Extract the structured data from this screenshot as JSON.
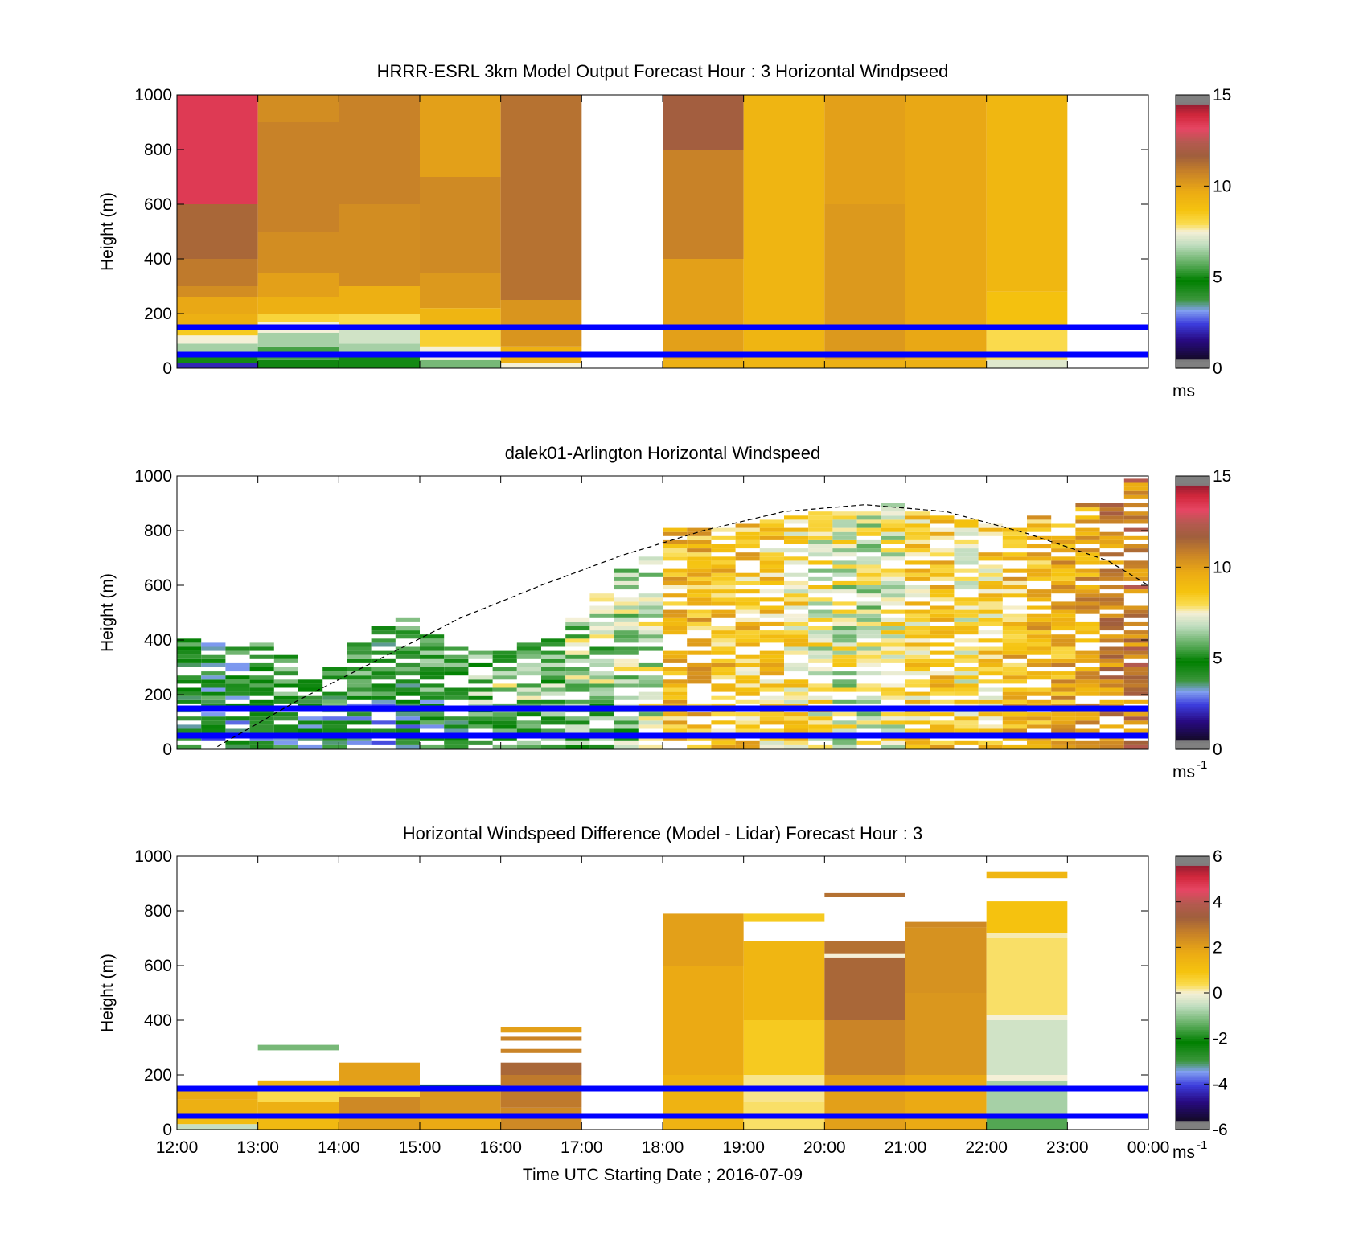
{
  "figure": {
    "xlabel": "Time UTC  Starting Date ; 2016-07-09"
  },
  "chart_data": [
    {
      "type": "heatmap",
      "title": "HRRR-ESRL 3km Model Output   Forecast Hour : 3 Horizontal Windpseed",
      "ylabel": "Height (m)",
      "ylim": [
        0,
        1000
      ],
      "yticks": [
        "0",
        "200",
        "400",
        "600",
        "800",
        "1000"
      ],
      "x_range_hours": [
        12,
        24
      ],
      "xtick_labels": [],
      "colorbar": {
        "range": [
          0,
          15
        ],
        "ticks": [
          "0",
          "5",
          "10",
          "15"
        ],
        "unit": "ms"
      },
      "reference_lines_m": [
        50,
        150
      ],
      "columns": [
        {
          "hour": 12,
          "layers": [
            [
              0,
              20,
              2.0
            ],
            [
              20,
              40,
              5.0
            ],
            [
              40,
              60,
              7.0
            ],
            [
              60,
              90,
              6.5
            ],
            [
              90,
              120,
              7.5
            ],
            [
              120,
              160,
              8.5
            ],
            [
              160,
              200,
              9.5
            ],
            [
              200,
              260,
              9.8
            ],
            [
              260,
              300,
              10.5
            ],
            [
              300,
              400,
              11.0
            ],
            [
              400,
              600,
              11.5
            ],
            [
              600,
              1000,
              13.5
            ]
          ]
        },
        {
          "hour": 13,
          "layers": [
            [
              0,
              30,
              4.5
            ],
            [
              30,
              80,
              5.5
            ],
            [
              80,
              130,
              6.5
            ],
            [
              130,
              170,
              7.5
            ],
            [
              170,
              200,
              8.2
            ],
            [
              200,
              260,
              9.5
            ],
            [
              260,
              350,
              10.0
            ],
            [
              350,
              500,
              10.5
            ],
            [
              500,
              900,
              10.8
            ],
            [
              900,
              1000,
              10.5
            ]
          ]
        },
        {
          "hour": 14,
          "layers": [
            [
              0,
              40,
              5.0
            ],
            [
              40,
              90,
              6.5
            ],
            [
              90,
              140,
              7.0
            ],
            [
              140,
              200,
              8.0
            ],
            [
              200,
              300,
              9.5
            ],
            [
              300,
              600,
              10.5
            ],
            [
              600,
              1000,
              10.8
            ]
          ]
        },
        {
          "hour": 15,
          "layers": [
            [
              0,
              30,
              6.0
            ],
            [
              30,
              80,
              7.5
            ],
            [
              80,
              140,
              8.3
            ],
            [
              140,
              220,
              9.3
            ],
            [
              220,
              350,
              10.2
            ],
            [
              350,
              700,
              10.6
            ],
            [
              700,
              1000,
              10.0
            ]
          ]
        },
        {
          "hour": 16,
          "layers": [
            [
              0,
              20,
              7.5
            ],
            [
              20,
              80,
              9.5
            ],
            [
              80,
              250,
              10.3
            ],
            [
              250,
              1000,
              11.2
            ]
          ]
        },
        {
          "hour": 18,
          "layers": [
            [
              0,
              30,
              9.5
            ],
            [
              30,
              400,
              10.0
            ],
            [
              400,
              800,
              10.8
            ],
            [
              800,
              1000,
              11.8
            ]
          ]
        },
        {
          "hour": 19,
          "layers": [
            [
              0,
              1000,
              9.3
            ]
          ]
        },
        {
          "hour": 20,
          "layers": [
            [
              0,
              30,
              9.5
            ],
            [
              30,
              600,
              10.2
            ],
            [
              600,
              1000,
              10.0
            ]
          ]
        },
        {
          "hour": 21,
          "layers": [
            [
              0,
              30,
              9.5
            ],
            [
              30,
              1000,
              9.8
            ]
          ]
        },
        {
          "hour": 22,
          "layers": [
            [
              0,
              30,
              7.2
            ],
            [
              30,
              150,
              8.0
            ],
            [
              150,
              280,
              8.8
            ],
            [
              280,
              1000,
              9.2
            ]
          ]
        }
      ]
    },
    {
      "type": "heatmap",
      "title": "dalek01-Arlington  Horizontal Windspeed",
      "ylabel": "Height (m)",
      "ylim": [
        0,
        1000
      ],
      "yticks": [
        "0",
        "200",
        "400",
        "600",
        "800",
        "1000"
      ],
      "x_range_hours": [
        12,
        24
      ],
      "xtick_labels": [],
      "colorbar": {
        "range": [
          0,
          15
        ],
        "ticks": [
          "0",
          "5",
          "10",
          "15"
        ],
        "unit": "ms",
        "unit_exp": "-1"
      },
      "reference_lines_m": [
        50,
        150
      ],
      "boundary_layer_curve": {
        "hours": [
          12.5,
          13.5,
          14.5,
          15.5,
          16.5,
          17.5,
          18.5,
          19.5,
          20.5,
          21.5,
          22.5,
          23.5,
          24
        ],
        "heights_m": [
          10,
          180,
          330,
          480,
          600,
          710,
          800,
          870,
          895,
          870,
          790,
          690,
          600
        ]
      },
      "column_hours": [
        12.0,
        12.3,
        12.6,
        12.9,
        13.2,
        13.5,
        13.8,
        14.1,
        14.4,
        14.7,
        15.0,
        15.3,
        15.6,
        15.9,
        16.2,
        16.5,
        16.8,
        17.1,
        17.4,
        17.7,
        18.0,
        18.3,
        18.6,
        18.9,
        19.2,
        19.5,
        19.8,
        20.1,
        20.4,
        20.7,
        21.0,
        21.3,
        21.6,
        21.9,
        22.2,
        22.5,
        22.8,
        23.1,
        23.4,
        23.7
      ],
      "column_tops_m": [
        400,
        380,
        370,
        380,
        340,
        260,
        300,
        380,
        450,
        480,
        420,
        370,
        350,
        360,
        380,
        400,
        480,
        560,
        650,
        700,
        800,
        800,
        810,
        820,
        830,
        850,
        870,
        880,
        880,
        890,
        870,
        850,
        830,
        820,
        840,
        850,
        870,
        890,
        900,
        1000
      ],
      "column_mean_speed": [
        5.0,
        4.5,
        4.5,
        5.0,
        5.0,
        4.5,
        5.0,
        5.0,
        4.8,
        4.8,
        5.2,
        5.5,
        6.0,
        6.5,
        6.2,
        6.2,
        6.5,
        6.5,
        6.8,
        7.0,
        9.0,
        9.2,
        9.0,
        8.8,
        8.5,
        8.2,
        7.5,
        7.2,
        7.0,
        7.5,
        8.5,
        8.8,
        8.0,
        8.5,
        9.0,
        9.2,
        9.5,
        9.8,
        10.5,
        11.0
      ]
    },
    {
      "type": "heatmap",
      "title": "Horizontal Windspeed Difference (Model - Lidar) Forecast Hour : 3",
      "ylabel": "Height (m)",
      "ylim": [
        0,
        1000
      ],
      "yticks": [
        "0",
        "200",
        "400",
        "600",
        "800",
        "1000"
      ],
      "x_range_hours": [
        12,
        24
      ],
      "xtick_labels": [
        "12:00",
        "13:00",
        "14:00",
        "15:00",
        "16:00",
        "17:00",
        "18:00",
        "19:00",
        "20:00",
        "21:00",
        "22:00",
        "23:00",
        "00:00"
      ],
      "colorbar": {
        "range": [
          -6,
          6
        ],
        "ticks": [
          "-6",
          "-4",
          "-2",
          "0",
          "2",
          "4",
          "6"
        ],
        "unit": "ms",
        "unit_exp": "-1"
      },
      "reference_lines_m": [
        50,
        150
      ],
      "columns": [
        {
          "hour": 12,
          "layers": [
            [
              0,
              20,
              -0.5
            ],
            [
              20,
              60,
              1.2
            ],
            [
              60,
              110,
              1.6
            ],
            [
              110,
              160,
              1.8
            ]
          ]
        },
        {
          "hour": 13,
          "layers": [
            [
              0,
              40,
              1.3
            ],
            [
              40,
              100,
              1.6
            ],
            [
              100,
              140,
              0.4
            ],
            [
              140,
              180,
              1.5
            ],
            [
              290,
              310,
              -1.2
            ]
          ]
        },
        {
          "hour": 14,
          "layers": [
            [
              0,
              60,
              2.0
            ],
            [
              60,
              120,
              2.5
            ],
            [
              120,
              150,
              0.5
            ],
            [
              150,
              245,
              2.0
            ]
          ]
        },
        {
          "hour": 15,
          "layers": [
            [
              0,
              50,
              1.8
            ],
            [
              50,
              150,
              2.2
            ],
            [
              150,
              165,
              -2.5
            ]
          ]
        },
        {
          "hour": 16,
          "layers": [
            [
              0,
              80,
              2.5
            ],
            [
              80,
              200,
              2.8
            ],
            [
              200,
              245,
              3.2
            ],
            [
              280,
              295,
              2.6
            ],
            [
              325,
              340,
              2.6
            ],
            [
              355,
              375,
              2.0
            ]
          ]
        },
        {
          "hour": 18,
          "layers": [
            [
              0,
              200,
              1.5
            ],
            [
              200,
              600,
              1.8
            ],
            [
              600,
              790,
              2.0
            ]
          ]
        },
        {
          "hour": 19,
          "layers": [
            [
              0,
              100,
              0.3
            ],
            [
              100,
              200,
              0.2
            ],
            [
              200,
              400,
              0.8
            ],
            [
              400,
              690,
              1.4
            ],
            [
              760,
              790,
              0.8
            ]
          ]
        },
        {
          "hour": 20,
          "layers": [
            [
              0,
              200,
              2.0
            ],
            [
              200,
              400,
              2.6
            ],
            [
              400,
              630,
              3.2
            ],
            [
              630,
              645,
              0.0
            ],
            [
              645,
              690,
              3.0
            ],
            [
              850,
              865,
              3.0
            ]
          ]
        },
        {
          "hour": 21,
          "layers": [
            [
              0,
              200,
              1.8
            ],
            [
              200,
              500,
              2.2
            ],
            [
              500,
              740,
              2.3
            ],
            [
              740,
              760,
              2.5
            ]
          ]
        },
        {
          "hour": 22,
          "layers": [
            [
              0,
              60,
              -1.5
            ],
            [
              60,
              180,
              -0.8
            ],
            [
              180,
              200,
              0.0
            ],
            [
              200,
              400,
              -0.4
            ],
            [
              400,
              420,
              0.0
            ],
            [
              420,
              700,
              0.3
            ],
            [
              700,
              720,
              0.1
            ],
            [
              720,
              835,
              1.0
            ],
            [
              920,
              945,
              1.4
            ]
          ]
        }
      ]
    }
  ]
}
